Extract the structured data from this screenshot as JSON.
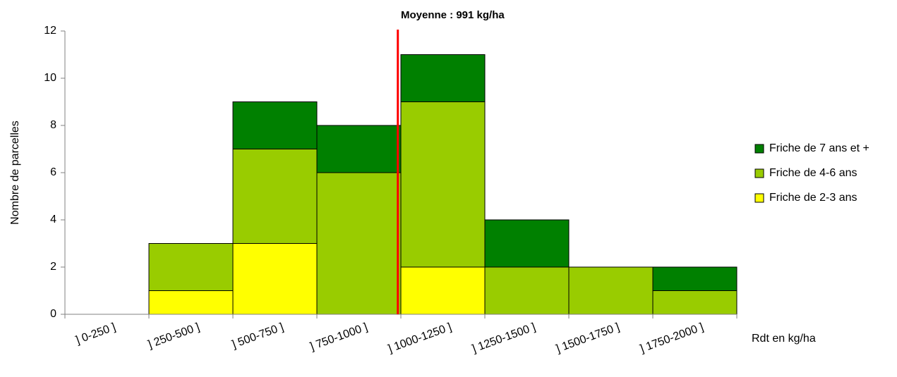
{
  "chart_data": {
    "type": "stacked_bar",
    "categories": [
      "] 0-250 ]",
      "] 250-500 ]",
      "] 500-750 ]",
      "] 750-1000 ]",
      "] 1000-1250 ]",
      "] 1250-1500 ]",
      "] 1500-1750 ]",
      "] 1750-2000 ]"
    ],
    "series": [
      {
        "name": "Friche de 2-3 ans",
        "color": "#ffff00",
        "values": [
          0,
          1,
          3,
          0,
          2,
          0,
          0,
          0
        ]
      },
      {
        "name": "Friche de 4-6 ans",
        "color": "#99cc00",
        "values": [
          0,
          2,
          4,
          6,
          7,
          2,
          2,
          1
        ]
      },
      {
        "name": "Friche de 7 ans et +",
        "color": "#008000",
        "values": [
          0,
          0,
          2,
          2,
          2,
          2,
          0,
          1
        ]
      }
    ],
    "ylim": [
      0,
      12
    ],
    "yticks": [
      0,
      2,
      4,
      6,
      8,
      10,
      12
    ],
    "xlim": [
      0,
      2000
    ],
    "y_label": "Nombre de parcelles",
    "x_label": "Rdt en kg/ha",
    "annotation": {
      "value": 991,
      "label": "Moyenne : 991 kg/ha",
      "color": "#ff0000"
    },
    "legend": "right"
  }
}
